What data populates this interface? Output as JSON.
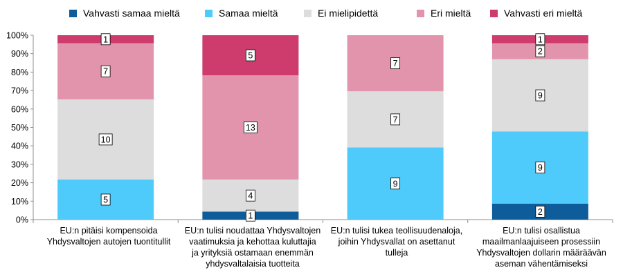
{
  "chart_data": {
    "type": "bar",
    "stacked": true,
    "percent": true,
    "title": "",
    "xlabel": "",
    "ylabel": "",
    "ylim": [
      0,
      100
    ],
    "yticks": [
      "0%",
      "10%",
      "20%",
      "30%",
      "40%",
      "50%",
      "60%",
      "70%",
      "80%",
      "90%",
      "100%"
    ],
    "grid": false,
    "legend_position": "top",
    "categories": [
      [
        "EU:n pitäisi kompensoida",
        "Yhdysvaltojen autojen tuontitullit"
      ],
      [
        "EU:n tulisi noudattaa Yhdysvaltojen",
        "vaatimuksia ja kehottaa kuluttajia",
        "ja yrityksiä ostamaan enemmän",
        "yhdysvaltalaisia tuotteita"
      ],
      [
        "EU:n tulisi tukea teollisuudenaloja,",
        "joihin Yhdysvallat on asettanut",
        "tulleja"
      ],
      [
        "EU:n tulisi osallistua",
        "maailmanlaajuiseen prosessiin",
        "Yhdysvaltojen dollarin määräävän",
        "aseman vähentämiseksi"
      ]
    ],
    "series": [
      {
        "name": "Vahvasti samaa mieltä",
        "color": "#0e5c99",
        "values": [
          0,
          1,
          0,
          2
        ]
      },
      {
        "name": "Samaa mieltä",
        "color": "#4ecbfb",
        "values": [
          5,
          0,
          9,
          9
        ]
      },
      {
        "name": "Ei mielipidettä",
        "color": "#dddddd",
        "values": [
          10,
          4,
          7,
          9
        ]
      },
      {
        "name": "Eri mieltä",
        "color": "#e394ad",
        "values": [
          7,
          13,
          7,
          2
        ]
      },
      {
        "name": "Vahvasti eri mieltä",
        "color": "#cd3c6c",
        "values": [
          1,
          5,
          0,
          1
        ]
      }
    ]
  }
}
